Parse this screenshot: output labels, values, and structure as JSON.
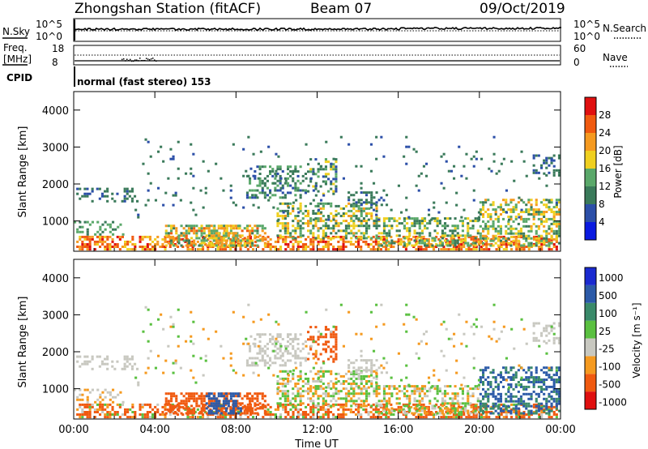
{
  "header": {
    "station": "Zhongshan Station (fitACF)",
    "beam": "Beam 07",
    "date": "09/Oct/2019"
  },
  "summary": {
    "nsky_label": "N.Sky",
    "nsky_ticks": [
      "10^5",
      "10^0"
    ],
    "nsearch_label": "N.Search",
    "nsearch_ticks": [
      "10^5",
      "10^0"
    ],
    "freq_label_1": "Freq.",
    "freq_label_2": "[MHz]",
    "freq_ticks": [
      "18",
      "8"
    ],
    "nave_label": "Nave",
    "nave_ticks": [
      "60",
      "0"
    ],
    "cpid_label": "CPID",
    "cpid_text": "normal (fast stereo) 153"
  },
  "colors": {
    "power_scale": [
      "#0a1ae0",
      "#2c4fa8",
      "#3a7a5a",
      "#5aa86a",
      "#f0d020",
      "#f59a20",
      "#f05a10",
      "#e01010"
    ],
    "velocity_scale": [
      "#e01010",
      "#f05a10",
      "#f59a20",
      "#c8c8c0",
      "#5ac040",
      "#3a8a6a",
      "#2c5aa8",
      "#1a2ad0"
    ]
  },
  "chart_data": [
    {
      "type": "heatmap",
      "name": "power",
      "ylabel": "Slant Range [km]",
      "xlabel": "",
      "x_ticks": [
        "00:00",
        "04:00",
        "08:00",
        "12:00",
        "16:00",
        "20:00",
        "00:00"
      ],
      "y_ticks": [
        1000,
        2000,
        3000,
        4000
      ],
      "xlim_hours": [
        0,
        24
      ],
      "ylim_km": [
        180,
        4500
      ],
      "colorbar_label": "Power [dB]",
      "colorbar_ticks": [
        4,
        8,
        12,
        16,
        20,
        24,
        28
      ],
      "colorbar_range": [
        0,
        32
      ]
    },
    {
      "type": "heatmap",
      "name": "velocity",
      "ylabel": "Slant Range [km]",
      "xlabel": "Time UT",
      "x_ticks": [
        "00:00",
        "04:00",
        "08:00",
        "12:00",
        "16:00",
        "20:00",
        "00:00"
      ],
      "y_ticks": [
        1000,
        2000,
        3000,
        4000
      ],
      "xlim_hours": [
        0,
        24
      ],
      "ylim_km": [
        180,
        4500
      ],
      "colorbar_label": "Velocity [m s⁻¹]",
      "colorbar_ticks": [
        "1000",
        "500",
        "100",
        "25",
        "-25",
        "-100",
        "-500",
        "-1000"
      ]
    }
  ]
}
